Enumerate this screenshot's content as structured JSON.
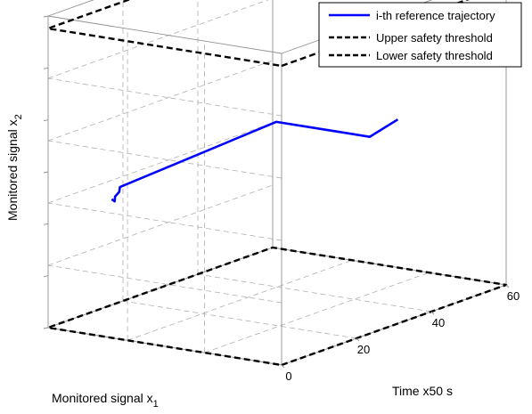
{
  "chart_data": {
    "type": "line",
    "projection": "3d",
    "xlabel": "Time x50 s",
    "ylabel": "Monitored signal x",
    "ylabel_sub": "1",
    "zlabel": "Monitored signal x",
    "zlabel_sub": "2",
    "x_ticks": [
      "0",
      "20",
      "40",
      "60"
    ],
    "xlim": [
      0,
      60
    ],
    "grid": true,
    "box": true,
    "legend_placement": "top-right",
    "series": [
      {
        "name": "i-th reference trajectory",
        "color": "#0000ff",
        "style": "solid",
        "points": [
          [
            0.6,
            0.92,
            0.37
          ],
          [
            0.64,
            0.92,
            0.36
          ],
          [
            0.645,
            0.92,
            0.375
          ],
          [
            0.7,
            0.92,
            0.385
          ],
          [
            0.71,
            0.92,
            0.4
          ],
          [
            2.8,
            0.92,
            0.43
          ],
          [
            2.8,
            0.52,
            0.43
          ],
          [
            2.8,
            0.4,
            0.5
          ]
        ]
      },
      {
        "name": "Upper safety threshold",
        "color": "#000000",
        "style": "dashed",
        "points": [
          [
            0,
            0,
            0.96
          ],
          [
            3,
            0,
            0.96
          ],
          [
            3,
            1,
            0.96
          ],
          [
            0,
            1,
            0.96
          ],
          [
            0,
            0,
            0.96
          ]
        ]
      },
      {
        "name": "Lower safety threshold",
        "color": "#000000",
        "style": "dashed",
        "points": [
          [
            0,
            0,
            0.0
          ],
          [
            3,
            0,
            0.0
          ],
          [
            3,
            1,
            0.0
          ],
          [
            0,
            1,
            0.0
          ],
          [
            0,
            0,
            0.0
          ]
        ]
      }
    ]
  }
}
